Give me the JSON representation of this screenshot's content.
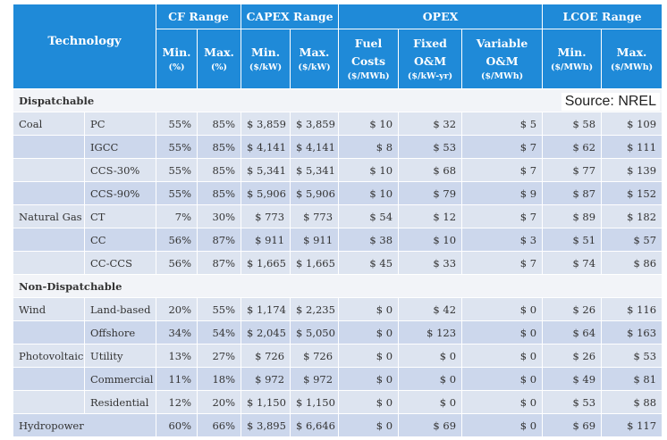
{
  "source": "Source: NREL",
  "header": {
    "technology": "Technology",
    "cf_range": "CF Range",
    "capex_range": "CAPEX Range",
    "opex": "OPEX",
    "lcoe_range": "LCOE Range",
    "cf_min": "Min.",
    "cf_min_unit": "(%)",
    "cf_max": "Max.",
    "cf_max_unit": "(%)",
    "capex_min": "Min.",
    "capex_min_unit": "($/kW)",
    "capex_max": "Max.",
    "capex_max_unit": "($/kW)",
    "fuel_1": "Fuel",
    "fuel_2": "Costs",
    "fuel_unit": "($/MWh)",
    "fixed_1": "Fixed",
    "fixed_2": "O&M",
    "fixed_unit": "($/kW-yr)",
    "var_1": "Variable",
    "var_2": "O&M",
    "var_unit": "($/MWh)",
    "lcoe_min": "Min.",
    "lcoe_min_unit": "($/MWh)",
    "lcoe_max": "Max.",
    "lcoe_max_unit": "($/MWh)"
  },
  "sections": {
    "dispatchable": "Dispatchable",
    "non_dispatchable": "Non-Dispatchable"
  },
  "groups": {
    "coal": "Coal",
    "natural_gas": "Natural Gas",
    "wind": "Wind",
    "pv": "Photovoltaic",
    "hydro": "Hydropower"
  },
  "rows": [
    [
      "PC",
      "55%",
      "85%",
      "$ 3,859",
      "$ 3,859",
      "$ 10",
      "$ 32",
      "$ 5",
      "$ 58",
      "$ 109"
    ],
    [
      "IGCC",
      "55%",
      "85%",
      "$ 4,141",
      "$ 4,141",
      "$ 8",
      "$ 53",
      "$ 7",
      "$ 62",
      "$ 111"
    ],
    [
      "CCS-30%",
      "55%",
      "85%",
      "$ 5,341",
      "$ 5,341",
      "$ 10",
      "$ 68",
      "$ 7",
      "$ 77",
      "$ 139"
    ],
    [
      "CCS-90%",
      "55%",
      "85%",
      "$ 5,906",
      "$ 5,906",
      "$ 10",
      "$ 79",
      "$ 9",
      "$ 87",
      "$ 152"
    ],
    [
      "CT",
      "7%",
      "30%",
      "$ 773",
      "$ 773",
      "$ 54",
      "$ 12",
      "$ 7",
      "$ 89",
      "$ 182"
    ],
    [
      "CC",
      "56%",
      "87%",
      "$ 911",
      "$ 911",
      "$ 38",
      "$ 10",
      "$ 3",
      "$ 51",
      "$ 57"
    ],
    [
      "CC-CCS",
      "56%",
      "87%",
      "$ 1,665",
      "$ 1,665",
      "$ 45",
      "$ 33",
      "$ 7",
      "$ 74",
      "$ 86"
    ],
    [
      "Land-based",
      "20%",
      "55%",
      "$ 1,174",
      "$ 2,235",
      "$ 0",
      "$ 42",
      "$ 0",
      "$ 26",
      "$ 116"
    ],
    [
      "Offshore",
      "34%",
      "54%",
      "$ 2,045",
      "$ 5,050",
      "$ 0",
      "$ 123",
      "$ 0",
      "$ 64",
      "$ 163"
    ],
    [
      "Utility",
      "13%",
      "27%",
      "$ 726",
      "$ 726",
      "$ 0",
      "$ 0",
      "$ 0",
      "$ 26",
      "$ 53"
    ],
    [
      "Commercial",
      "11%",
      "18%",
      "$ 972",
      "$ 972",
      "$ 0",
      "$ 0",
      "$ 0",
      "$ 49",
      "$ 81"
    ],
    [
      "Residential",
      "12%",
      "20%",
      "$ 1,150",
      "$ 1,150",
      "$ 0",
      "$ 0",
      "$ 0",
      "$ 53",
      "$ 88"
    ],
    [
      "",
      "60%",
      "66%",
      "$ 3,895",
      "$ 6,646",
      "$ 0",
      "$ 69",
      "$ 0",
      "$ 69",
      "$ 117"
    ]
  ]
}
